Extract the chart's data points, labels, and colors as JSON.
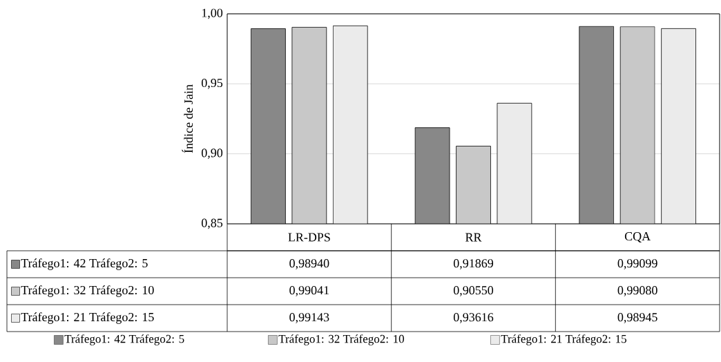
{
  "chart_data": {
    "type": "bar",
    "ylabel": "Índice de Jain",
    "categories": [
      "LR-DPS",
      "RR",
      "CQA"
    ],
    "series": [
      {
        "name": "Tráfego1: 42 Tráfego2: 5",
        "color": "#888888",
        "values": [
          0.9894,
          0.91869,
          0.99099
        ],
        "value_labels": [
          "0,98940",
          "0,91869",
          "0,99099"
        ]
      },
      {
        "name": "Tráfego1: 32 Tráfego2: 10",
        "color": "#c8c8c8",
        "values": [
          0.99041,
          0.9055,
          0.9908
        ],
        "value_labels": [
          "0,99041",
          "0,90550",
          "0,99080"
        ]
      },
      {
        "name": "Tráfego1: 21 Tráfego2: 15",
        "color": "#ebebeb",
        "values": [
          0.99143,
          0.93616,
          0.98945
        ],
        "value_labels": [
          "0,99143",
          "0,93616",
          "0,98945"
        ]
      }
    ],
    "ylim": [
      0.85,
      1.0
    ],
    "yticks": [
      {
        "value": 0.85,
        "label": "0,85"
      },
      {
        "value": 0.9,
        "label": "0,90"
      },
      {
        "value": 0.95,
        "label": "0,95"
      },
      {
        "value": 1.0,
        "label": "1,00"
      }
    ],
    "grid": "y",
    "legend": "bottom"
  }
}
